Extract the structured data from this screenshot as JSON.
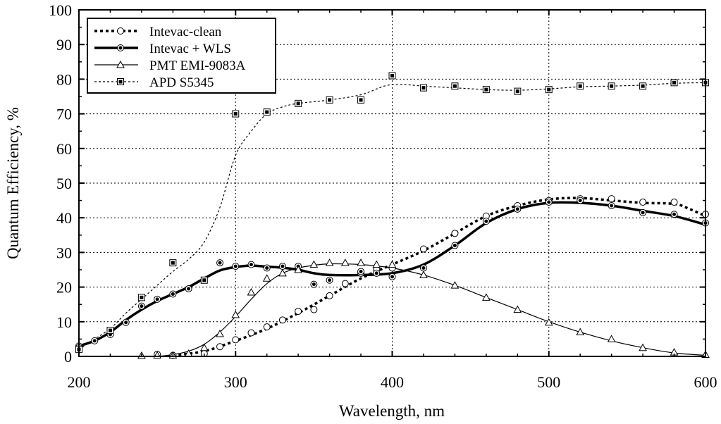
{
  "chart_data": {
    "type": "line",
    "xlabel": "Wavelength, nm",
    "ylabel": "Quantum Efficiency, %",
    "xlim": [
      200,
      600
    ],
    "ylim": [
      0,
      100
    ],
    "x_ticks": [
      200,
      300,
      400,
      500,
      600
    ],
    "y_ticks": [
      0,
      10,
      20,
      30,
      40,
      50,
      60,
      70,
      80,
      90,
      100
    ],
    "grid": true,
    "legend_position": "top-left",
    "series": [
      {
        "name": "Intevac-clean",
        "marker": "open-circle",
        "line": "thick-dotted",
        "points": [
          [
            200,
            3
          ],
          [
            250,
            0.6
          ],
          [
            260,
            0.3
          ],
          [
            280,
            0.8
          ],
          [
            290,
            2.8
          ],
          [
            300,
            4.8
          ],
          [
            310,
            6.8
          ],
          [
            320,
            8.5
          ],
          [
            330,
            10.5
          ],
          [
            340,
            13
          ],
          [
            350,
            13.5
          ],
          [
            360,
            17.5
          ],
          [
            370,
            21
          ],
          [
            380,
            24
          ],
          [
            390,
            25
          ],
          [
            400,
            25.5
          ],
          [
            420,
            31
          ],
          [
            440,
            35.5
          ],
          [
            460,
            40.5
          ],
          [
            480,
            43.5
          ],
          [
            500,
            45
          ],
          [
            520,
            45.5
          ],
          [
            540,
            45.5
          ],
          [
            560,
            44.5
          ],
          [
            580,
            44.5
          ],
          [
            600,
            41
          ]
        ],
        "curve": [
          [
            260,
            0.3
          ],
          [
            280,
            1.5
          ],
          [
            300,
            4.5
          ],
          [
            320,
            8
          ],
          [
            340,
            12.5
          ],
          [
            360,
            17.5
          ],
          [
            380,
            22.5
          ],
          [
            400,
            26.5
          ],
          [
            420,
            30.5
          ],
          [
            440,
            35.5
          ],
          [
            460,
            40.5
          ],
          [
            480,
            43.5
          ],
          [
            500,
            45.3
          ],
          [
            520,
            45.7
          ],
          [
            540,
            45
          ],
          [
            560,
            44.3
          ],
          [
            580,
            44
          ],
          [
            590,
            42.5
          ],
          [
            600,
            40.5
          ]
        ]
      },
      {
        "name": "Intevac + WLS",
        "marker": "filled-circle",
        "line": "thick-solid",
        "points": [
          [
            200,
            2.5
          ],
          [
            210,
            4.5
          ],
          [
            220,
            6.3
          ],
          [
            230,
            9.8
          ],
          [
            240,
            14.5
          ],
          [
            250,
            16.5
          ],
          [
            260,
            18
          ],
          [
            270,
            19.5
          ],
          [
            290,
            27
          ],
          [
            300,
            26
          ],
          [
            310,
            26.5
          ],
          [
            320,
            25.5
          ],
          [
            330,
            26
          ],
          [
            340,
            26
          ],
          [
            350,
            20.8
          ],
          [
            360,
            22
          ],
          [
            380,
            24.5
          ],
          [
            390,
            24
          ],
          [
            400,
            23
          ],
          [
            420,
            25.5
          ],
          [
            440,
            32
          ],
          [
            460,
            39
          ],
          [
            480,
            42.5
          ],
          [
            500,
            44.5
          ],
          [
            520,
            45
          ],
          [
            540,
            43.5
          ],
          [
            560,
            41.5
          ],
          [
            580,
            41
          ],
          [
            600,
            38.5
          ]
        ],
        "curve": [
          [
            200,
            3
          ],
          [
            210,
            4.5
          ],
          [
            220,
            7
          ],
          [
            230,
            10.5
          ],
          [
            240,
            13.5
          ],
          [
            250,
            16
          ],
          [
            260,
            18
          ],
          [
            270,
            20
          ],
          [
            280,
            22.5
          ],
          [
            290,
            24.8
          ],
          [
            300,
            25.8
          ],
          [
            310,
            26.2
          ],
          [
            320,
            25.9
          ],
          [
            330,
            25.6
          ],
          [
            340,
            25
          ],
          [
            350,
            24
          ],
          [
            360,
            23.5
          ],
          [
            380,
            23.5
          ],
          [
            400,
            24
          ],
          [
            420,
            26.5
          ],
          [
            440,
            32
          ],
          [
            460,
            38.5
          ],
          [
            480,
            42.5
          ],
          [
            500,
            44.3
          ],
          [
            520,
            44.3
          ],
          [
            540,
            43.5
          ],
          [
            560,
            42
          ],
          [
            580,
            40.5
          ],
          [
            600,
            38
          ]
        ]
      },
      {
        "name": "PMT EMI-9083A",
        "marker": "open-triangle",
        "line": "thin-solid",
        "points": [
          [
            240,
            0.2
          ],
          [
            250,
            0.3
          ],
          [
            260,
            0.3
          ],
          [
            270,
            0.8
          ],
          [
            280,
            2.5
          ],
          [
            290,
            6.5
          ],
          [
            300,
            12
          ],
          [
            310,
            18.5
          ],
          [
            320,
            22.5
          ],
          [
            330,
            24
          ],
          [
            340,
            25
          ],
          [
            350,
            26.5
          ],
          [
            360,
            27
          ],
          [
            370,
            27
          ],
          [
            380,
            27
          ],
          [
            390,
            26.5
          ],
          [
            400,
            26.5
          ],
          [
            420,
            23.5
          ],
          [
            440,
            20.5
          ],
          [
            460,
            17
          ],
          [
            480,
            13.5
          ],
          [
            500,
            9.8
          ],
          [
            520,
            7
          ],
          [
            540,
            5
          ],
          [
            560,
            2.5
          ],
          [
            580,
            1.2
          ],
          [
            600,
            0.5
          ]
        ],
        "curve": [
          [
            250,
            0
          ],
          [
            260,
            0.5
          ],
          [
            270,
            1.5
          ],
          [
            280,
            3.5
          ],
          [
            290,
            7
          ],
          [
            300,
            11.5
          ],
          [
            310,
            16.5
          ],
          [
            320,
            21
          ],
          [
            330,
            24
          ],
          [
            340,
            25.5
          ],
          [
            350,
            26.3
          ],
          [
            360,
            26.7
          ],
          [
            380,
            26.5
          ],
          [
            400,
            25.5
          ],
          [
            420,
            23.5
          ],
          [
            440,
            20.5
          ],
          [
            460,
            17
          ],
          [
            480,
            13.5
          ],
          [
            500,
            10
          ],
          [
            520,
            7
          ],
          [
            540,
            4.5
          ],
          [
            560,
            2.5
          ],
          [
            580,
            1
          ],
          [
            600,
            0.3
          ]
        ]
      },
      {
        "name": "APD S5345",
        "marker": "filled-square",
        "line": "thin-dotted",
        "points": [
          [
            200,
            2
          ],
          [
            220,
            7.5
          ],
          [
            240,
            17
          ],
          [
            260,
            27
          ],
          [
            280,
            22
          ],
          [
            300,
            70
          ],
          [
            320,
            70.5
          ],
          [
            340,
            73
          ],
          [
            360,
            74
          ],
          [
            380,
            74
          ],
          [
            400,
            81
          ],
          [
            420,
            77.5
          ],
          [
            440,
            78
          ],
          [
            460,
            77
          ],
          [
            480,
            76.5
          ],
          [
            500,
            77
          ],
          [
            520,
            78
          ],
          [
            540,
            78
          ],
          [
            560,
            78
          ],
          [
            580,
            79
          ],
          [
            600,
            79
          ]
        ],
        "curve": [
          [
            200,
            2
          ],
          [
            210,
            5
          ],
          [
            220,
            8
          ],
          [
            230,
            12.5
          ],
          [
            240,
            16.5
          ],
          [
            250,
            20.5
          ],
          [
            260,
            24.5
          ],
          [
            270,
            28
          ],
          [
            280,
            33
          ],
          [
            290,
            43
          ],
          [
            300,
            58
          ],
          [
            310,
            65
          ],
          [
            320,
            70
          ],
          [
            330,
            72
          ],
          [
            340,
            73
          ],
          [
            360,
            74
          ],
          [
            380,
            75.5
          ],
          [
            395,
            78
          ],
          [
            405,
            78.5
          ],
          [
            420,
            78
          ],
          [
            440,
            77.5
          ],
          [
            460,
            77
          ],
          [
            480,
            76.8
          ],
          [
            500,
            77.2
          ],
          [
            520,
            77.8
          ],
          [
            540,
            78
          ],
          [
            560,
            78.3
          ],
          [
            580,
            78.8
          ],
          [
            600,
            79
          ]
        ]
      }
    ]
  }
}
